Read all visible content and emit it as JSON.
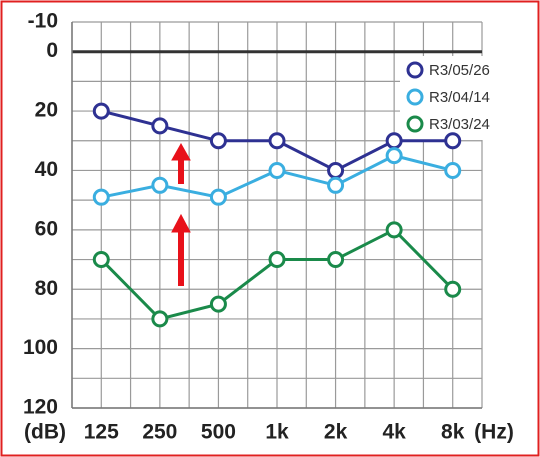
{
  "chart_data": {
    "type": "line",
    "y_label": "(dB)",
    "x_label": "(Hz)",
    "categories": [
      "125",
      "250",
      "500",
      "1k",
      "2k",
      "4k",
      "8k"
    ],
    "series": [
      {
        "name": "R3/05/26",
        "color": "#2e3192",
        "values": [
          20,
          25,
          30,
          30,
          40,
          30,
          30
        ]
      },
      {
        "name": "R3/04/14",
        "color": "#3aaee0",
        "values": [
          49,
          45,
          49,
          40,
          45,
          35,
          40
        ]
      },
      {
        "name": "R3/03/24",
        "color": "#1a8a4a",
        "values": [
          70,
          90,
          85,
          70,
          70,
          60,
          80
        ]
      }
    ],
    "ylim": [
      -10,
      120
    ],
    "yticks": [
      -10,
      0,
      20,
      40,
      60,
      80,
      100,
      120
    ],
    "y_inverted": true,
    "grid": true,
    "legend": "upper right"
  }
}
